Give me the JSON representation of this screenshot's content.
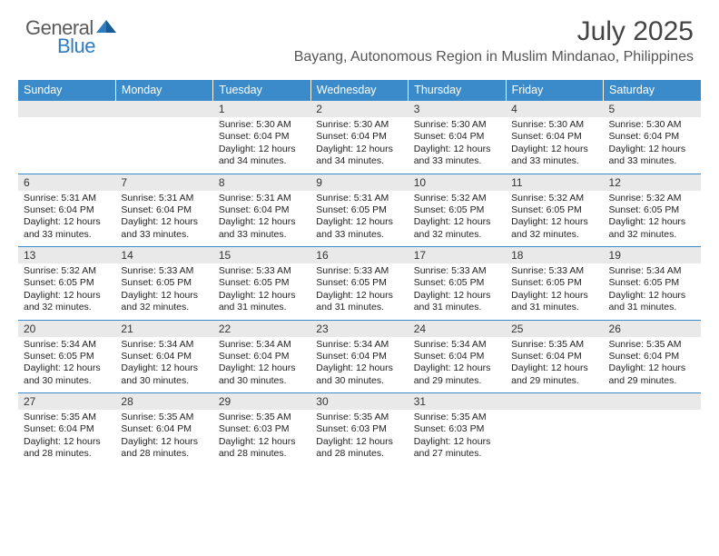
{
  "brand": {
    "general": "General",
    "blue": "Blue"
  },
  "title": "July 2025",
  "location": "Bayang, Autonomous Region in Muslim Mindanao, Philippines",
  "colors": {
    "header_bg": "#3b8bca",
    "header_fg": "#ffffff",
    "daynum_bg": "#e9e9e9",
    "rule": "#3b8bca"
  },
  "weekdays": [
    "Sunday",
    "Monday",
    "Tuesday",
    "Wednesday",
    "Thursday",
    "Friday",
    "Saturday"
  ],
  "weeks": [
    [
      null,
      null,
      {
        "n": "1",
        "r": "Sunrise: 5:30 AM",
        "s": "Sunset: 6:04 PM",
        "d1": "Daylight: 12 hours",
        "d2": "and 34 minutes."
      },
      {
        "n": "2",
        "r": "Sunrise: 5:30 AM",
        "s": "Sunset: 6:04 PM",
        "d1": "Daylight: 12 hours",
        "d2": "and 34 minutes."
      },
      {
        "n": "3",
        "r": "Sunrise: 5:30 AM",
        "s": "Sunset: 6:04 PM",
        "d1": "Daylight: 12 hours",
        "d2": "and 33 minutes."
      },
      {
        "n": "4",
        "r": "Sunrise: 5:30 AM",
        "s": "Sunset: 6:04 PM",
        "d1": "Daylight: 12 hours",
        "d2": "and 33 minutes."
      },
      {
        "n": "5",
        "r": "Sunrise: 5:30 AM",
        "s": "Sunset: 6:04 PM",
        "d1": "Daylight: 12 hours",
        "d2": "and 33 minutes."
      }
    ],
    [
      {
        "n": "6",
        "r": "Sunrise: 5:31 AM",
        "s": "Sunset: 6:04 PM",
        "d1": "Daylight: 12 hours",
        "d2": "and 33 minutes."
      },
      {
        "n": "7",
        "r": "Sunrise: 5:31 AM",
        "s": "Sunset: 6:04 PM",
        "d1": "Daylight: 12 hours",
        "d2": "and 33 minutes."
      },
      {
        "n": "8",
        "r": "Sunrise: 5:31 AM",
        "s": "Sunset: 6:04 PM",
        "d1": "Daylight: 12 hours",
        "d2": "and 33 minutes."
      },
      {
        "n": "9",
        "r": "Sunrise: 5:31 AM",
        "s": "Sunset: 6:05 PM",
        "d1": "Daylight: 12 hours",
        "d2": "and 33 minutes."
      },
      {
        "n": "10",
        "r": "Sunrise: 5:32 AM",
        "s": "Sunset: 6:05 PM",
        "d1": "Daylight: 12 hours",
        "d2": "and 32 minutes."
      },
      {
        "n": "11",
        "r": "Sunrise: 5:32 AM",
        "s": "Sunset: 6:05 PM",
        "d1": "Daylight: 12 hours",
        "d2": "and 32 minutes."
      },
      {
        "n": "12",
        "r": "Sunrise: 5:32 AM",
        "s": "Sunset: 6:05 PM",
        "d1": "Daylight: 12 hours",
        "d2": "and 32 minutes."
      }
    ],
    [
      {
        "n": "13",
        "r": "Sunrise: 5:32 AM",
        "s": "Sunset: 6:05 PM",
        "d1": "Daylight: 12 hours",
        "d2": "and 32 minutes."
      },
      {
        "n": "14",
        "r": "Sunrise: 5:33 AM",
        "s": "Sunset: 6:05 PM",
        "d1": "Daylight: 12 hours",
        "d2": "and 32 minutes."
      },
      {
        "n": "15",
        "r": "Sunrise: 5:33 AM",
        "s": "Sunset: 6:05 PM",
        "d1": "Daylight: 12 hours",
        "d2": "and 31 minutes."
      },
      {
        "n": "16",
        "r": "Sunrise: 5:33 AM",
        "s": "Sunset: 6:05 PM",
        "d1": "Daylight: 12 hours",
        "d2": "and 31 minutes."
      },
      {
        "n": "17",
        "r": "Sunrise: 5:33 AM",
        "s": "Sunset: 6:05 PM",
        "d1": "Daylight: 12 hours",
        "d2": "and 31 minutes."
      },
      {
        "n": "18",
        "r": "Sunrise: 5:33 AM",
        "s": "Sunset: 6:05 PM",
        "d1": "Daylight: 12 hours",
        "d2": "and 31 minutes."
      },
      {
        "n": "19",
        "r": "Sunrise: 5:34 AM",
        "s": "Sunset: 6:05 PM",
        "d1": "Daylight: 12 hours",
        "d2": "and 31 minutes."
      }
    ],
    [
      {
        "n": "20",
        "r": "Sunrise: 5:34 AM",
        "s": "Sunset: 6:05 PM",
        "d1": "Daylight: 12 hours",
        "d2": "and 30 minutes."
      },
      {
        "n": "21",
        "r": "Sunrise: 5:34 AM",
        "s": "Sunset: 6:04 PM",
        "d1": "Daylight: 12 hours",
        "d2": "and 30 minutes."
      },
      {
        "n": "22",
        "r": "Sunrise: 5:34 AM",
        "s": "Sunset: 6:04 PM",
        "d1": "Daylight: 12 hours",
        "d2": "and 30 minutes."
      },
      {
        "n": "23",
        "r": "Sunrise: 5:34 AM",
        "s": "Sunset: 6:04 PM",
        "d1": "Daylight: 12 hours",
        "d2": "and 30 minutes."
      },
      {
        "n": "24",
        "r": "Sunrise: 5:34 AM",
        "s": "Sunset: 6:04 PM",
        "d1": "Daylight: 12 hours",
        "d2": "and 29 minutes."
      },
      {
        "n": "25",
        "r": "Sunrise: 5:35 AM",
        "s": "Sunset: 6:04 PM",
        "d1": "Daylight: 12 hours",
        "d2": "and 29 minutes."
      },
      {
        "n": "26",
        "r": "Sunrise: 5:35 AM",
        "s": "Sunset: 6:04 PM",
        "d1": "Daylight: 12 hours",
        "d2": "and 29 minutes."
      }
    ],
    [
      {
        "n": "27",
        "r": "Sunrise: 5:35 AM",
        "s": "Sunset: 6:04 PM",
        "d1": "Daylight: 12 hours",
        "d2": "and 28 minutes."
      },
      {
        "n": "28",
        "r": "Sunrise: 5:35 AM",
        "s": "Sunset: 6:04 PM",
        "d1": "Daylight: 12 hours",
        "d2": "and 28 minutes."
      },
      {
        "n": "29",
        "r": "Sunrise: 5:35 AM",
        "s": "Sunset: 6:03 PM",
        "d1": "Daylight: 12 hours",
        "d2": "and 28 minutes."
      },
      {
        "n": "30",
        "r": "Sunrise: 5:35 AM",
        "s": "Sunset: 6:03 PM",
        "d1": "Daylight: 12 hours",
        "d2": "and 28 minutes."
      },
      {
        "n": "31",
        "r": "Sunrise: 5:35 AM",
        "s": "Sunset: 6:03 PM",
        "d1": "Daylight: 12 hours",
        "d2": "and 27 minutes."
      },
      null,
      null
    ]
  ]
}
